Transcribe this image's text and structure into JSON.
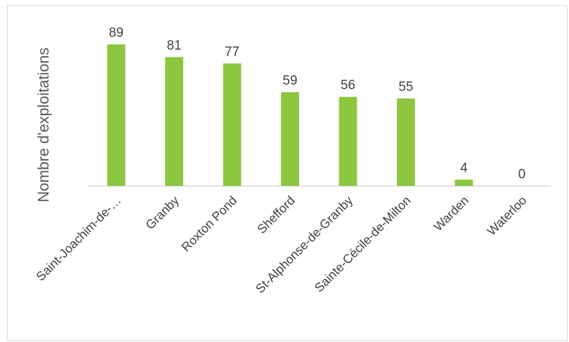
{
  "chart_data": {
    "type": "bar",
    "title": "",
    "xlabel": "",
    "ylabel": "Nombre d'exploitations",
    "categories": [
      "Saint-Joachim-de-…",
      "Granby",
      "Roxton Pond",
      "Shefford",
      "St-Alphonse-de-Granby",
      "Sainte-Cécile-de-Milton",
      "Warden",
      "Waterloo"
    ],
    "values": [
      89,
      81,
      77,
      59,
      56,
      55,
      4,
      0
    ],
    "data_labels": [
      "89",
      "81",
      "77",
      "59",
      "56",
      "55",
      "4",
      "0"
    ],
    "ylim": [
      0,
      100
    ],
    "grid": false,
    "legend": "none",
    "bar_color": "#8dc63f",
    "axis_color": "#d9d9d9"
  }
}
